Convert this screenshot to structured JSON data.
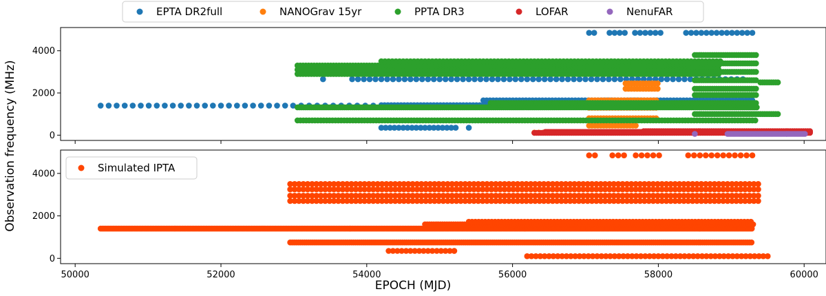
{
  "chart_data": [
    {
      "type": "scatter",
      "panel": "top",
      "ylabel": "Observation frequency (MHz)",
      "xlim": [
        49800,
        60300
      ],
      "ylim": [
        -250,
        5100
      ],
      "yticks": [
        0,
        2000,
        4000
      ],
      "legend": {
        "placement": "top, outside, horizontal",
        "entries": [
          "EPTA DR2full",
          "NANOGrav 15yr",
          "PPTA DR3",
          "LOFAR",
          "NenuFAR"
        ]
      },
      "series": [
        {
          "name": "EPTA DR2full",
          "color": "#1f77b4",
          "bands": [
            {
              "y": 1400,
              "x": [
                50350,
                54200
              ],
              "step": 110
            },
            {
              "y": 1420,
              "x": [
                54200,
                59300
              ],
              "step": 45
            },
            {
              "y": 1650,
              "x": [
                55600,
                59300
              ],
              "step": 45
            },
            {
              "y": 2650,
              "x": [
                53800,
                59200
              ],
              "step": 80
            },
            {
              "y": 350,
              "x": [
                54200,
                55250
              ],
              "step": 60
            },
            {
              "y": 4850,
              "x": [
                57050,
                59300
              ],
              "step": 70,
              "gaps": [
                [
                  57150,
                  57300
                ],
                [
                  57550,
                  57650
                ],
                [
                  58050,
                  58350
                ]
              ]
            }
          ],
          "points": [
            {
              "x": 55400,
              "y": 350
            },
            {
              "x": 53400,
              "y": 2650
            }
          ]
        },
        {
          "name": "NANOGrav 15yr",
          "color": "#ff7f0e",
          "bands": [
            {
              "y": 1300,
              "x": [
                57050,
                58000
              ],
              "step": 40
            },
            {
              "y": 1500,
              "x": [
                57050,
                58000
              ],
              "step": 40
            },
            {
              "y": 1650,
              "x": [
                57050,
                58000
              ],
              "step": 40
            },
            {
              "y": 2200,
              "x": [
                57550,
                58000
              ],
              "step": 40
            },
            {
              "y": 2450,
              "x": [
                57550,
                58000
              ],
              "step": 40
            },
            {
              "y": 800,
              "x": [
                57050,
                58000
              ],
              "step": 40
            },
            {
              "y": 450,
              "x": [
                57050,
                57700
              ],
              "step": 40
            },
            {
              "y": 120,
              "x": [
                56300,
                58000
              ],
              "step": 60
            }
          ]
        },
        {
          "name": "PPTA DR3",
          "color": "#2ca02c",
          "bands": [
            {
              "y": 1320,
              "x": [
                53050,
                59350
              ],
              "step": 28
            },
            {
              "y": 1520,
              "x": [
                55700,
                59350
              ],
              "step": 35
            },
            {
              "y": 700,
              "x": [
                53050,
                59350
              ],
              "step": 40
            },
            {
              "y": 2900,
              "x": [
                53050,
                58850
              ],
              "step": 38
            },
            {
              "y": 3100,
              "x": [
                53050,
                58850
              ],
              "step": 38
            },
            {
              "y": 3300,
              "x": [
                53050,
                58850
              ],
              "step": 38
            },
            {
              "y": 3500,
              "x": [
                54200,
                58850
              ],
              "step": 50
            },
            {
              "y": 1900,
              "x": [
                58500,
                59350
              ],
              "step": 30
            },
            {
              "y": 2200,
              "x": [
                58500,
                59350
              ],
              "step": 30
            },
            {
              "y": 2600,
              "x": [
                58500,
                59350
              ],
              "step": 30
            },
            {
              "y": 3000,
              "x": [
                58500,
                59350
              ],
              "step": 30
            },
            {
              "y": 3400,
              "x": [
                58500,
                59350
              ],
              "step": 30
            },
            {
              "y": 3800,
              "x": [
                58500,
                59350
              ],
              "step": 30
            },
            {
              "y": 1000,
              "x": [
                58500,
                59650
              ],
              "step": 30
            },
            {
              "y": 2500,
              "x": [
                59400,
                59650
              ],
              "step": 30
            }
          ]
        },
        {
          "name": "LOFAR",
          "color": "#d62728",
          "bands": [
            {
              "y": 150,
              "x": [
                56450,
                60080
              ],
              "step": 22
            },
            {
              "y": 110,
              "x": [
                56300,
                60080
              ],
              "step": 30
            },
            {
              "y": 190,
              "x": [
                57800,
                60080
              ],
              "step": 30
            }
          ]
        },
        {
          "name": "NenuFAR",
          "color": "#9467bd",
          "bands": [
            {
              "y": 60,
              "x": [
                58950,
                60020
              ],
              "step": 20
            }
          ],
          "points": [
            {
              "x": 58500,
              "y": 60
            }
          ]
        }
      ]
    },
    {
      "type": "scatter",
      "panel": "bottom",
      "xlabel": "EPOCH (MJD)",
      "ylabel": "Observation frequency (MHz)",
      "xlim": [
        49800,
        60300
      ],
      "ylim": [
        -250,
        5100
      ],
      "xticks": [
        50000,
        52000,
        54000,
        56000,
        58000,
        60000
      ],
      "yticks": [
        0,
        2000,
        4000
      ],
      "legend": {
        "placement": "upper left",
        "entries": [
          "Simulated IPTA"
        ]
      },
      "series": [
        {
          "name": "Simulated IPTA",
          "color": "#ff4500",
          "bands": [
            {
              "y": 1400,
              "x": [
                50350,
                59300
              ],
              "step": 22
            },
            {
              "y": 1600,
              "x": [
                54800,
                59300
              ],
              "step": 30
            },
            {
              "y": 1720,
              "x": [
                55400,
                59300
              ],
              "step": 45
            },
            {
              "y": 750,
              "x": [
                52950,
                59300
              ],
              "step": 28
            },
            {
              "y": 2700,
              "x": [
                52950,
                59400
              ],
              "step": 60
            },
            {
              "y": 2950,
              "x": [
                52950,
                59400
              ],
              "step": 60
            },
            {
              "y": 3250,
              "x": [
                52950,
                59400
              ],
              "step": 60
            },
            {
              "y": 3500,
              "x": [
                52950,
                59400
              ],
              "step": 60
            },
            {
              "y": 350,
              "x": [
                54300,
                55250
              ],
              "step": 60
            },
            {
              "y": 100,
              "x": [
                56200,
                59500
              ],
              "step": 60
            },
            {
              "y": 4850,
              "x": [
                57050,
                59300
              ],
              "step": 80,
              "gaps": [
                [
                  57150,
                  57300
                ],
                [
                  57550,
                  57650
                ],
                [
                  58050,
                  58350
                ]
              ]
            }
          ],
          "points": [
            {
              "x": 55200,
              "y": 350
            }
          ]
        }
      ]
    }
  ]
}
